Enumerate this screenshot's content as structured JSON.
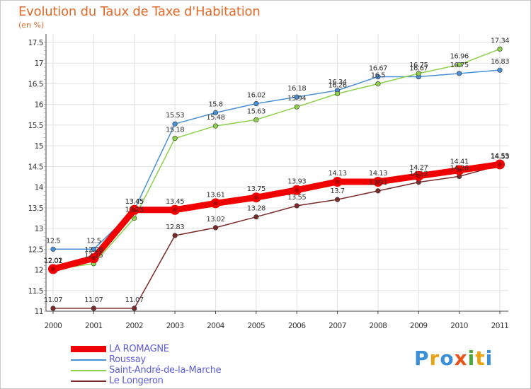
{
  "title": "Evolution du Taux de Taxe d'Habitation",
  "subtitle": "(en %)",
  "logo": {
    "text": [
      "P",
      "r",
      "o",
      "x",
      "i",
      "t",
      "i"
    ],
    "colors": [
      "#3a8fd6",
      "#e8a317",
      "#3a8fd6",
      "#e8531a",
      "#4aa83a",
      "#e8a317",
      "#3a8fd6"
    ]
  },
  "chart_data": {
    "type": "line",
    "x": [
      "2000",
      "2001",
      "2002",
      "2003",
      "2004",
      "2005",
      "2006",
      "2007",
      "2008",
      "2009",
      "2010",
      "2011"
    ],
    "ylim": [
      11,
      17.5
    ],
    "yticks": [
      "11",
      "11.5",
      "12",
      "12.5",
      "13",
      "13.5",
      "14",
      "14.5",
      "15",
      "15.5",
      "16",
      "16.5",
      "17",
      "17.5"
    ],
    "grid": true,
    "legend_position": "bottom-left",
    "series": [
      {
        "name": "Roussay",
        "color": "#4a8fd4",
        "values": [
          12.5,
          12.5,
          13.45,
          15.53,
          15.8,
          16.02,
          16.18,
          16.34,
          16.67,
          16.67,
          16.75,
          16.83
        ],
        "labels": [
          "12.5",
          "12.5",
          "13.45",
          "15.53",
          "15.8",
          "16.02",
          "16.18",
          "16.34",
          "16.67",
          "16.67",
          "16.75",
          "16.83"
        ]
      },
      {
        "name": "Saint-André-de-la-Marche",
        "color": "#8ed04a",
        "values": [
          12.01,
          12.15,
          13.25,
          15.18,
          15.48,
          15.63,
          15.94,
          16.26,
          16.5,
          16.75,
          16.96,
          17.34
        ],
        "labels": [
          "12.01",
          "12.15",
          "13.25",
          "15.18",
          "15.48",
          "15.63",
          "15.94",
          "16.26",
          "16.5",
          "16.75",
          "16.96",
          "17.34"
        ]
      },
      {
        "name": "Le Longeron",
        "color": "#7a2a2a",
        "values": [
          11.07,
          11.07,
          11.07,
          12.83,
          13.02,
          13.28,
          13.55,
          13.7,
          13.91,
          14.12,
          14.26,
          14.53
        ],
        "labels": [
          "11.07",
          "11.07",
          "11.07",
          "12.83",
          "13.02",
          "13.28",
          "13.55",
          "13.7",
          "13.91",
          "14.12",
          "14.26",
          "14.53"
        ]
      },
      {
        "name": "LA ROMAGNE",
        "color": "#f00000",
        "values": [
          12.02,
          12.28,
          13.45,
          13.45,
          13.61,
          13.75,
          13.93,
          14.13,
          14.13,
          14.27,
          14.41,
          14.55
        ],
        "labels": [
          "12.02",
          "12.28",
          "13.45",
          "13.45",
          "13.61",
          "13.75",
          "13.93",
          "14.13",
          "14.13",
          "14.27",
          "14.41",
          "14.55"
        ]
      }
    ],
    "legend_order": [
      "LA ROMAGNE",
      "Roussay",
      "Saint-André-de-la-Marche",
      "Le Longeron"
    ]
  }
}
